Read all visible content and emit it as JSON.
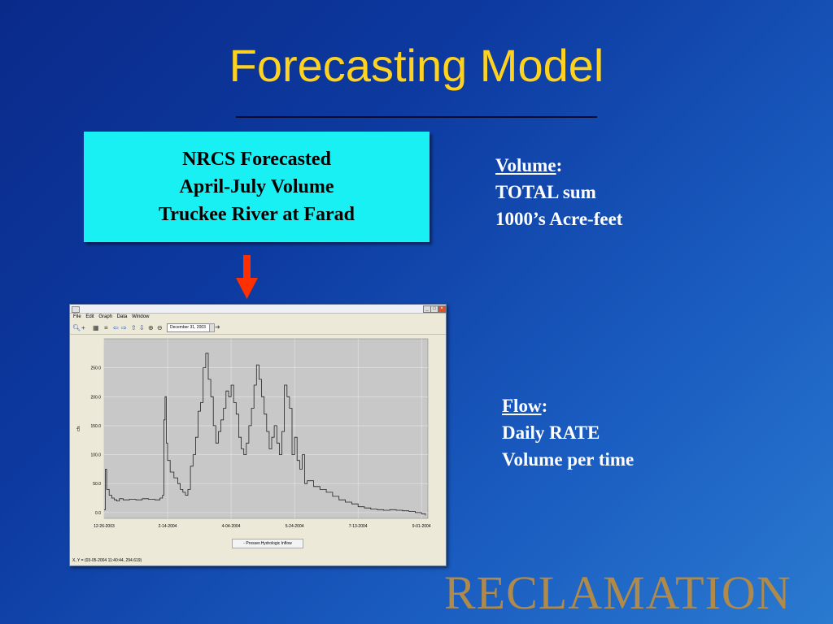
{
  "slide": {
    "title": "Forecasting Model",
    "box_lines": [
      "NRCS Forecasted",
      "April-July Volume",
      "Truckee River at Farad"
    ],
    "volume_note": {
      "heading": "Volume",
      "suffix": ":",
      "lines": [
        "TOTAL sum",
        "1000’s Acre-feet"
      ]
    },
    "flow_note": {
      "heading": "Flow",
      "suffix": ":",
      "lines": [
        "Daily RATE",
        "Volume per time"
      ]
    },
    "brand": "RECLAMATION",
    "colors": {
      "title": "#ffd21f",
      "box": "#19f0f4",
      "arrow": "#ff3000",
      "brand": "#b08a4a"
    }
  },
  "app": {
    "window_controls": [
      "minimize",
      "maximize",
      "close"
    ],
    "menu": [
      "File",
      "Edit",
      "Graph",
      "Data",
      "Window"
    ],
    "toolbar_icons": [
      "zoom-icon",
      "crosshair-icon",
      "grid-icon",
      "chart-icon",
      "arrow-left-icon",
      "arrow-right-icon",
      "arrow-up-icon",
      "arrow-down-icon",
      "zoom-in-icon",
      "zoom-out-icon"
    ],
    "date_value": "December 31, 2003",
    "status_text": "X, Y = (03-05-2004 11:40:44, 294.619)"
  },
  "chart_data": {
    "type": "line",
    "ylabel": "cfs",
    "xlabel": "",
    "ylim": [
      -10,
      300
    ],
    "yticks": [
      0,
      50,
      100,
      150,
      200,
      250
    ],
    "ytick_labels": [
      "0.0",
      "50.0",
      "100.0",
      "150.0",
      "200.0",
      "250.0"
    ],
    "xtick_labels": [
      "12-26-2003",
      "2-14-2004",
      "4-04-2004",
      "5-24-2004",
      "7-13-2004",
      "9-01-2004"
    ],
    "x_range_days": [
      0,
      255
    ],
    "xtick_days": [
      0,
      50,
      100,
      150,
      200,
      250
    ],
    "grid": true,
    "legend": "bottom-center",
    "series": [
      {
        "name": "Prosser.Hydrologic Inflow",
        "x": [
          0,
          1,
          2,
          4,
          6,
          8,
          10,
          12,
          15,
          20,
          25,
          30,
          35,
          40,
          44,
          46,
          47,
          48,
          49,
          50,
          52,
          55,
          58,
          60,
          62,
          64,
          66,
          68,
          70,
          72,
          74,
          76,
          78,
          80,
          82,
          84,
          86,
          88,
          90,
          92,
          94,
          96,
          98,
          100,
          102,
          104,
          106,
          108,
          110,
          112,
          114,
          116,
          118,
          120,
          122,
          124,
          126,
          128,
          130,
          132,
          134,
          136,
          138,
          140,
          142,
          144,
          146,
          148,
          150,
          152,
          154,
          156,
          158,
          160,
          165,
          170,
          175,
          180,
          185,
          190,
          195,
          200,
          205,
          210,
          215,
          220,
          225,
          230,
          235,
          240,
          245,
          250,
          253
        ],
        "y": [
          5,
          75,
          40,
          30,
          25,
          22,
          20,
          24,
          22,
          23,
          22,
          24,
          23,
          22,
          25,
          30,
          160,
          200,
          120,
          90,
          70,
          60,
          50,
          40,
          35,
          30,
          40,
          80,
          100,
          130,
          175,
          190,
          250,
          275,
          230,
          200,
          150,
          120,
          140,
          160,
          180,
          210,
          200,
          220,
          190,
          170,
          130,
          110,
          100,
          120,
          150,
          180,
          220,
          255,
          230,
          200,
          170,
          140,
          110,
          130,
          150,
          120,
          100,
          140,
          220,
          200,
          180,
          100,
          130,
          90,
          75,
          100,
          50,
          55,
          45,
          40,
          35,
          28,
          22,
          18,
          15,
          10,
          8,
          6,
          5,
          4,
          5,
          4,
          3,
          2,
          0,
          -2,
          -5
        ]
      }
    ]
  }
}
